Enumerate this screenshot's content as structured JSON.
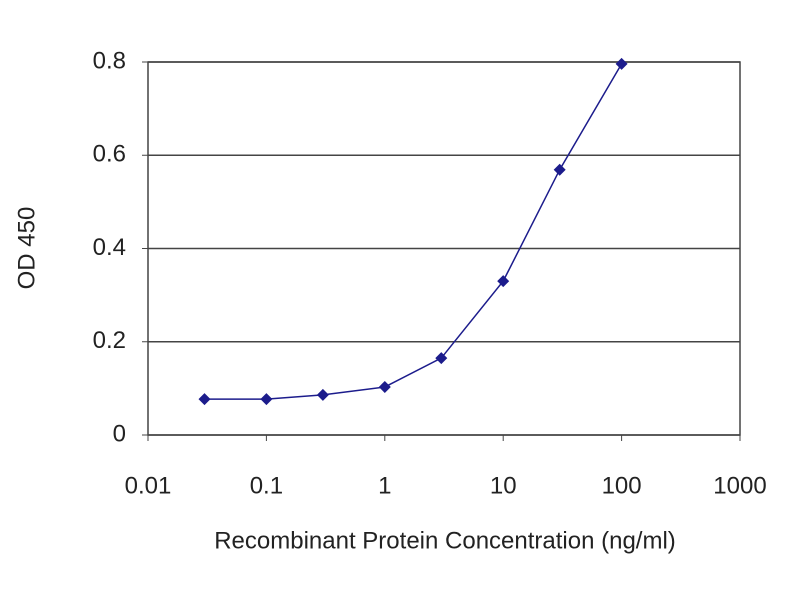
{
  "chart_data": {
    "type": "line",
    "x_label": "Recombinant Protein Concentration (ng/ml)",
    "y_label": "OD 450",
    "x": [
      0.03,
      0.1,
      0.3,
      1,
      3,
      10,
      30,
      100
    ],
    "series": [
      {
        "name": "OD 450",
        "color": "#1c1c8c",
        "values": [
          0.077,
          0.077,
          0.086,
          0.103,
          0.165,
          0.33,
          0.569,
          0.796
        ]
      }
    ],
    "x_scale": "log",
    "xlim": [
      0.01,
      1000
    ],
    "xticks": [
      0.01,
      0.1,
      1,
      10,
      100,
      1000
    ],
    "ylim": [
      0,
      0.8
    ],
    "yticks": [
      0,
      0.2,
      0.4,
      0.6,
      0.8
    ],
    "grid": true
  }
}
